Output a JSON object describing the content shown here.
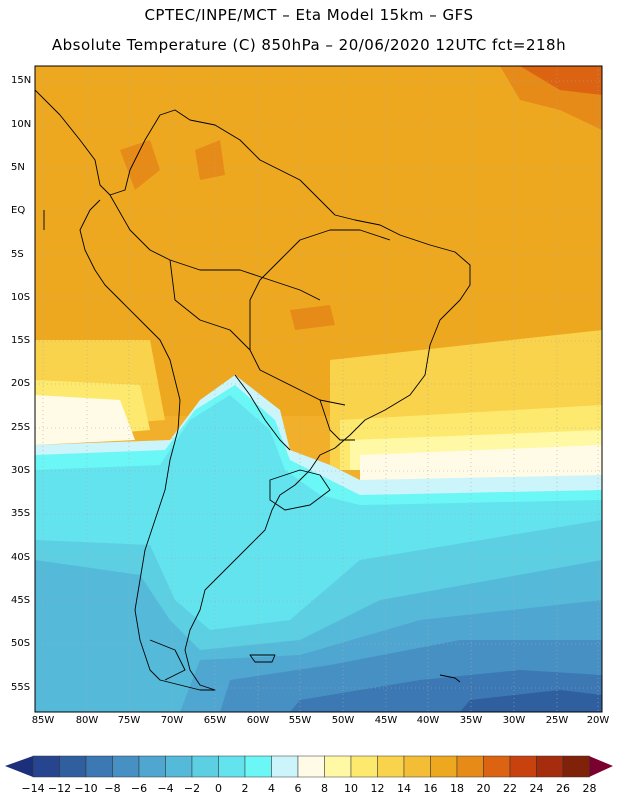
{
  "header": {
    "line1": "CPTEC/INPE/MCT –   Eta Model 15km – GFS",
    "line2": "Absolute Temperature (C) 850hPa – 20/06/2020 12UTC fct=218h"
  },
  "map": {
    "lat_labels": [
      "15N",
      "10N",
      "5N",
      "EQ",
      "5S",
      "10S",
      "15S",
      "20S",
      "25S",
      "30S",
      "35S",
      "40S",
      "45S",
      "50S",
      "55S"
    ],
    "lon_labels": [
      "85W",
      "80W",
      "75W",
      "70W",
      "65W",
      "60W",
      "55W",
      "50W",
      "45W",
      "40W",
      "35W",
      "30W",
      "25W",
      "20W"
    ]
  },
  "colorbar": {
    "labels": [
      "-14",
      "-12",
      "-10",
      "-8",
      "-6",
      "-4",
      "-2",
      "0",
      "2",
      "4",
      "6",
      "8",
      "10",
      "12",
      "14",
      "16",
      "18",
      "20",
      "22",
      "24",
      "26",
      "28"
    ],
    "colors": [
      "#27448f",
      "#2f5f9f",
      "#3b78b4",
      "#4790c4",
      "#4fa6d0",
      "#55bad9",
      "#5ccfe2",
      "#63e3ee",
      "#6cf7f7",
      "#cbf4fb",
      "#fffbe6",
      "#fff9a6",
      "#fde96d",
      "#f9d34b",
      "#f3bd35",
      "#eea81f",
      "#e68a18",
      "#dc6312",
      "#c8420f",
      "#a52c0c",
      "#80210a"
    ],
    "under_color": "#1c2f7a",
    "over_color": "#7a0030"
  }
}
